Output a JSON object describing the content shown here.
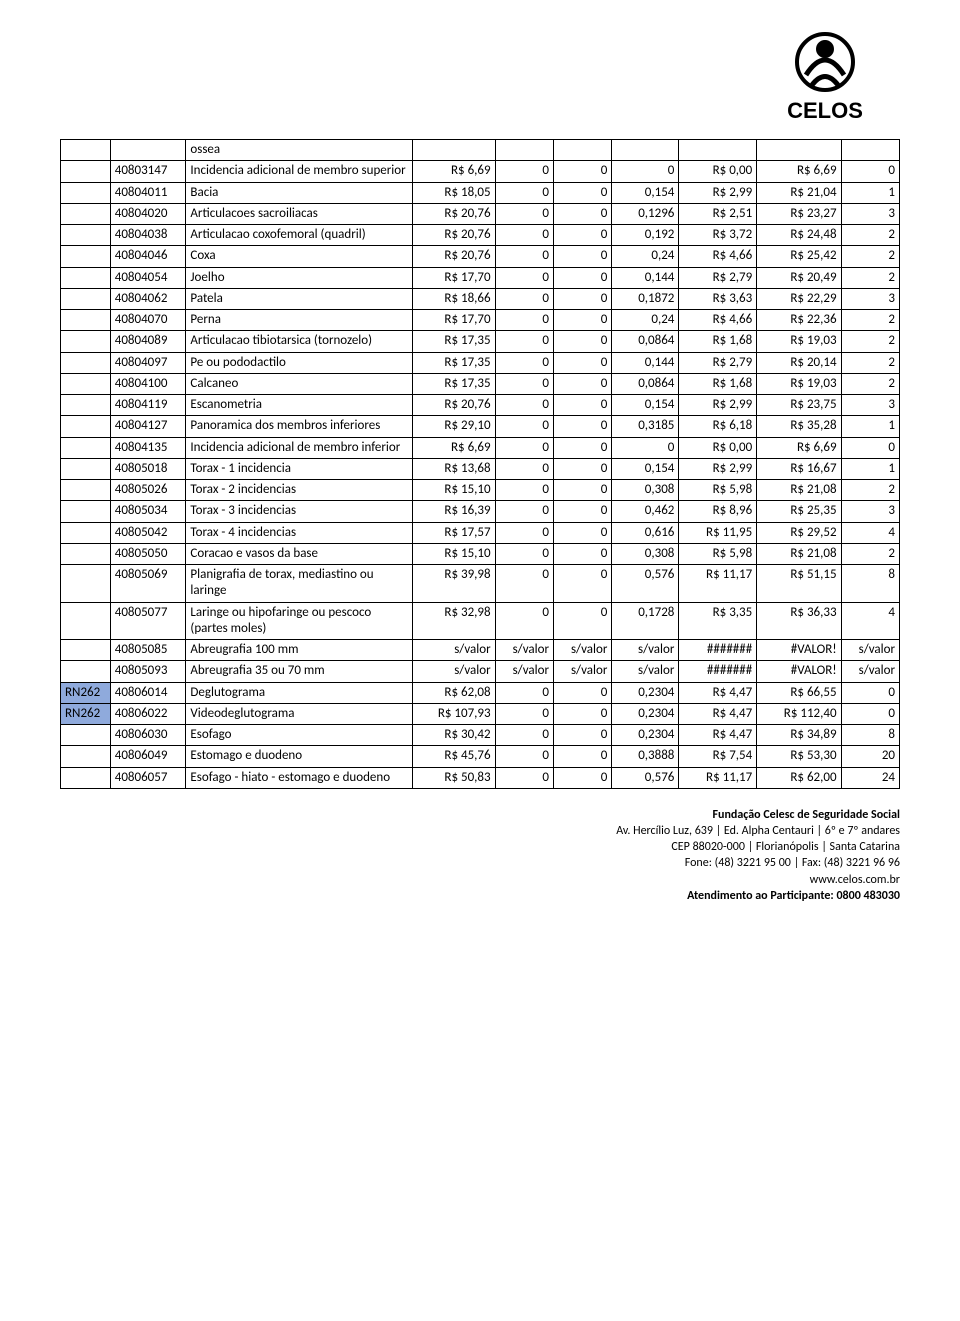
{
  "logo_text": "CELOS",
  "colors": {
    "rn_highlight": "#8faadc",
    "border": "#000000",
    "text": "#000000",
    "background": "#ffffff"
  },
  "rows": [
    {
      "rn": "",
      "code": "",
      "desc": "ossea",
      "v1": "",
      "v2": "",
      "v3": "",
      "v4": "",
      "v5": "",
      "v6": "",
      "v7": ""
    },
    {
      "rn": "",
      "code": "40803147",
      "desc": "Incidencia adicional de membro superior",
      "v1": "R$ 6,69",
      "v2": "0",
      "v3": "0",
      "v4": "0",
      "v5": "R$ 0,00",
      "v6": "R$ 6,69",
      "v7": "0"
    },
    {
      "rn": "",
      "code": "40804011",
      "desc": "Bacia",
      "v1": "R$ 18,05",
      "v2": "0",
      "v3": "0",
      "v4": "0,154",
      "v5": "R$ 2,99",
      "v6": "R$ 21,04",
      "v7": "1"
    },
    {
      "rn": "",
      "code": "40804020",
      "desc": "Articulacoes sacroiliacas",
      "v1": "R$ 20,76",
      "v2": "0",
      "v3": "0",
      "v4": "0,1296",
      "v5": "R$ 2,51",
      "v6": "R$ 23,27",
      "v7": "3"
    },
    {
      "rn": "",
      "code": "40804038",
      "desc": "Articulacao coxofemoral (quadril)",
      "v1": "R$ 20,76",
      "v2": "0",
      "v3": "0",
      "v4": "0,192",
      "v5": "R$ 3,72",
      "v6": "R$ 24,48",
      "v7": "2"
    },
    {
      "rn": "",
      "code": "40804046",
      "desc": "Coxa",
      "v1": "R$ 20,76",
      "v2": "0",
      "v3": "0",
      "v4": "0,24",
      "v5": "R$ 4,66",
      "v6": "R$ 25,42",
      "v7": "2"
    },
    {
      "rn": "",
      "code": "40804054",
      "desc": "Joelho",
      "v1": "R$ 17,70",
      "v2": "0",
      "v3": "0",
      "v4": "0,144",
      "v5": "R$ 2,79",
      "v6": "R$ 20,49",
      "v7": "2"
    },
    {
      "rn": "",
      "code": "40804062",
      "desc": "Patela",
      "v1": "R$ 18,66",
      "v2": "0",
      "v3": "0",
      "v4": "0,1872",
      "v5": "R$ 3,63",
      "v6": "R$ 22,29",
      "v7": "3"
    },
    {
      "rn": "",
      "code": "40804070",
      "desc": "Perna",
      "v1": "R$ 17,70",
      "v2": "0",
      "v3": "0",
      "v4": "0,24",
      "v5": "R$ 4,66",
      "v6": "R$ 22,36",
      "v7": "2"
    },
    {
      "rn": "",
      "code": "40804089",
      "desc": "Articulacao tibiotarsica (tornozelo)",
      "v1": "R$ 17,35",
      "v2": "0",
      "v3": "0",
      "v4": "0,0864",
      "v5": "R$ 1,68",
      "v6": "R$ 19,03",
      "v7": "2"
    },
    {
      "rn": "",
      "code": "40804097",
      "desc": "Pe ou pododactilo",
      "v1": "R$ 17,35",
      "v2": "0",
      "v3": "0",
      "v4": "0,144",
      "v5": "R$ 2,79",
      "v6": "R$ 20,14",
      "v7": "2"
    },
    {
      "rn": "",
      "code": "40804100",
      "desc": "Calcaneo",
      "v1": "R$ 17,35",
      "v2": "0",
      "v3": "0",
      "v4": "0,0864",
      "v5": "R$ 1,68",
      "v6": "R$ 19,03",
      "v7": "2"
    },
    {
      "rn": "",
      "code": "40804119",
      "desc": "Escanometria",
      "v1": "R$ 20,76",
      "v2": "0",
      "v3": "0",
      "v4": "0,154",
      "v5": "R$ 2,99",
      "v6": "R$ 23,75",
      "v7": "3"
    },
    {
      "rn": "",
      "code": "40804127",
      "desc": "Panoramica dos membros inferiores",
      "v1": "R$ 29,10",
      "v2": "0",
      "v3": "0",
      "v4": "0,3185",
      "v5": "R$ 6,18",
      "v6": "R$ 35,28",
      "v7": "1"
    },
    {
      "rn": "",
      "code": "40804135",
      "desc": "Incidencia adicional de membro inferior",
      "v1": "R$ 6,69",
      "v2": "0",
      "v3": "0",
      "v4": "0",
      "v5": "R$ 0,00",
      "v6": "R$ 6,69",
      "v7": "0"
    },
    {
      "rn": "",
      "code": "40805018",
      "desc": "Torax - 1 incidencia",
      "v1": "R$ 13,68",
      "v2": "0",
      "v3": "0",
      "v4": "0,154",
      "v5": "R$ 2,99",
      "v6": "R$ 16,67",
      "v7": "1"
    },
    {
      "rn": "",
      "code": "40805026",
      "desc": "Torax - 2 incidencias",
      "v1": "R$ 15,10",
      "v2": "0",
      "v3": "0",
      "v4": "0,308",
      "v5": "R$ 5,98",
      "v6": "R$ 21,08",
      "v7": "2"
    },
    {
      "rn": "",
      "code": "40805034",
      "desc": "Torax - 3 incidencias",
      "v1": "R$ 16,39",
      "v2": "0",
      "v3": "0",
      "v4": "0,462",
      "v5": "R$ 8,96",
      "v6": "R$ 25,35",
      "v7": "3"
    },
    {
      "rn": "",
      "code": "40805042",
      "desc": "Torax - 4 incidencias",
      "v1": "R$ 17,57",
      "v2": "0",
      "v3": "0",
      "v4": "0,616",
      "v5": "R$ 11,95",
      "v6": "R$ 29,52",
      "v7": "4"
    },
    {
      "rn": "",
      "code": "40805050",
      "desc": "Coracao e vasos da base",
      "v1": "R$ 15,10",
      "v2": "0",
      "v3": "0",
      "v4": "0,308",
      "v5": "R$ 5,98",
      "v6": "R$ 21,08",
      "v7": "2"
    },
    {
      "rn": "",
      "code": "40805069",
      "desc": "Planigrafia de torax, mediastino ou laringe",
      "v1": "R$ 39,98",
      "v2": "0",
      "v3": "0",
      "v4": "0,576",
      "v5": "R$ 11,17",
      "v6": "R$ 51,15",
      "v7": "8"
    },
    {
      "rn": "",
      "code": "40805077",
      "desc": "Laringe ou hipofaringe ou pescoco (partes moles)",
      "v1": "R$ 32,98",
      "v2": "0",
      "v3": "0",
      "v4": "0,1728",
      "v5": "R$ 3,35",
      "v6": "R$ 36,33",
      "v7": "4"
    },
    {
      "rn": "",
      "code": "40805085",
      "desc": "Abreugrafia 100 mm",
      "v1": "s/valor",
      "v2": "s/valor",
      "v3": "s/valor",
      "v4": "s/valor",
      "v5": "#######",
      "v6": "#VALOR!",
      "v7": "s/valor"
    },
    {
      "rn": "",
      "code": "40805093",
      "desc": "Abreugrafia 35 ou 70 mm",
      "v1": "s/valor",
      "v2": "s/valor",
      "v3": "s/valor",
      "v4": "s/valor",
      "v5": "#######",
      "v6": "#VALOR!",
      "v7": "s/valor"
    },
    {
      "rn": "RN262",
      "rn_filled": true,
      "code": "40806014",
      "desc": "Deglutograma",
      "v1": "R$ 62,08",
      "v2": "0",
      "v3": "0",
      "v4": "0,2304",
      "v5": "R$ 4,47",
      "v6": "R$ 66,55",
      "v7": "0"
    },
    {
      "rn": "RN262",
      "rn_filled": true,
      "code": "40806022",
      "desc": "Videodeglutograma",
      "v1": "R$ 107,93",
      "v2": "0",
      "v3": "0",
      "v4": "0,2304",
      "v5": "R$ 4,47",
      "v6": "R$ 112,40",
      "v7": "0"
    },
    {
      "rn": "",
      "code": "40806030",
      "desc": "Esofago",
      "v1": "R$ 30,42",
      "v2": "0",
      "v3": "0",
      "v4": "0,2304",
      "v5": "R$ 4,47",
      "v6": "R$ 34,89",
      "v7": "8"
    },
    {
      "rn": "",
      "code": "40806049",
      "desc": "Estomago e duodeno",
      "v1": "R$ 45,76",
      "v2": "0",
      "v3": "0",
      "v4": "0,3888",
      "v5": "R$ 7,54",
      "v6": "R$ 53,30",
      "v7": "20"
    },
    {
      "rn": "",
      "code": "40806057",
      "desc": "Esofago - hiato - estomago e duodeno",
      "v1": "R$ 50,83",
      "v2": "0",
      "v3": "0",
      "v4": "0,576",
      "v5": "R$ 11,17",
      "v6": "R$ 62,00",
      "v7": "24"
    }
  ],
  "footer": {
    "line1_bold": "Fundação Celesc de Seguridade Social",
    "line2": "Av. Hercílio Luz, 639 | Ed. Alpha Centauri | 6º e 7º andares",
    "line3": "CEP 88020-000 | Florianópolis | Santa Catarina",
    "line4": "Fone: (48) 3221 95 00 | Fax: (48) 3221 96 96",
    "line5": "www.celos.com.br",
    "line6_bold": "Atendimento ao Participante: 0800 483030"
  }
}
